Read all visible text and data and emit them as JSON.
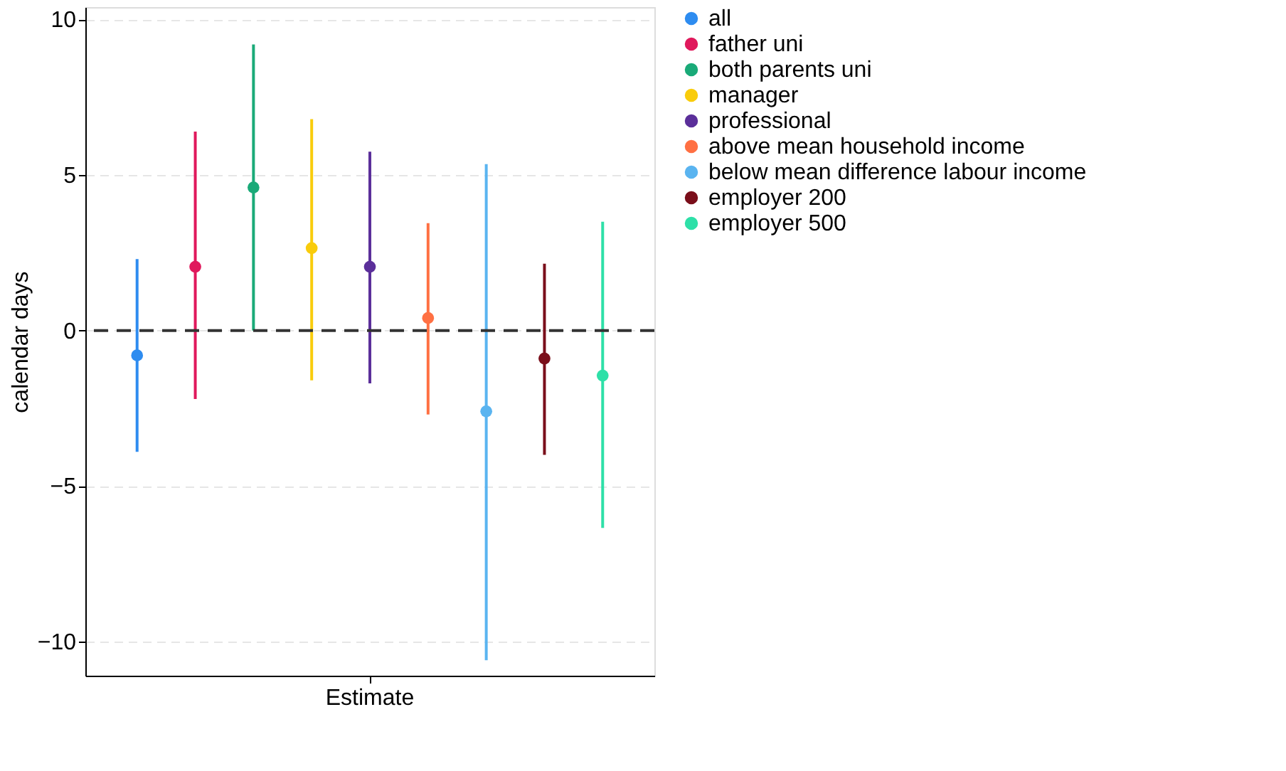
{
  "chart_data": {
    "type": "scatter",
    "ylabel": "calendar days",
    "categories": [
      "Estimate"
    ],
    "ylim": [
      -11.1,
      10.4
    ],
    "yticks": [
      -10,
      -5,
      0,
      5,
      10
    ],
    "grid": "y",
    "legend": "right",
    "marker": "circle",
    "ref_lines": [
      {
        "axis": "y",
        "value": 0,
        "color": "#333333",
        "line_style": "dashed"
      }
    ],
    "series": [
      {
        "name": "all",
        "color": "#2e8cf0",
        "values": [
          -0.8
        ],
        "errors": [
          [
            -3.9,
            2.3
          ]
        ]
      },
      {
        "name": "father uni",
        "color": "#e0195c",
        "values": [
          2.05
        ],
        "errors": [
          [
            -2.2,
            6.4
          ]
        ]
      },
      {
        "name": "both parents uni",
        "color": "#1aaa78",
        "values": [
          4.6
        ],
        "errors": [
          [
            0.0,
            9.2
          ]
        ]
      },
      {
        "name": "manager",
        "color": "#f9cc0c",
        "values": [
          2.65
        ],
        "errors": [
          [
            -1.6,
            6.8
          ]
        ]
      },
      {
        "name": "professional",
        "color": "#5b2f9a",
        "values": [
          2.05
        ],
        "errors": [
          [
            -1.7,
            5.75
          ]
        ]
      },
      {
        "name": "above mean household income",
        "color": "#ff7043",
        "values": [
          0.4
        ],
        "errors": [
          [
            -2.7,
            3.45
          ]
        ]
      },
      {
        "name": "below mean difference labour income",
        "color": "#5ab4f0",
        "values": [
          -2.6
        ],
        "errors": [
          [
            -10.6,
            5.35
          ]
        ]
      },
      {
        "name": "employer 200",
        "color": "#7a0e1a",
        "values": [
          -0.9
        ],
        "errors": [
          [
            -4.0,
            2.15
          ]
        ]
      },
      {
        "name": "employer 500",
        "color": "#2ee0a8",
        "values": [
          -1.45
        ],
        "errors": [
          [
            -6.35,
            3.5
          ]
        ]
      }
    ]
  }
}
